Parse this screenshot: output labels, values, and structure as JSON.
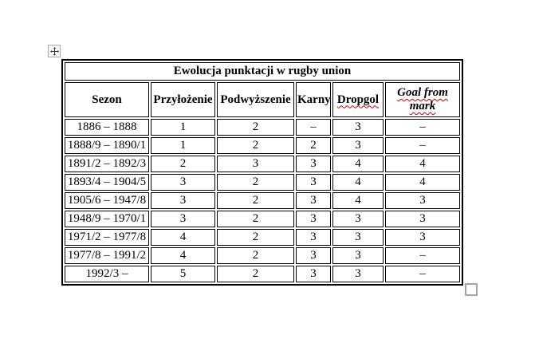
{
  "table": {
    "title": "Ewolucja punktacji w rugby union",
    "columns": [
      {
        "key": "sezon",
        "label": "Sezon",
        "misspelled": false,
        "italic": false
      },
      {
        "key": "przylozenie",
        "label": "Przyłożenie",
        "misspelled": false,
        "italic": false
      },
      {
        "key": "podwyzszenie",
        "label": "Podwyższenie",
        "misspelled": false,
        "italic": false
      },
      {
        "key": "karny",
        "label": "Karny",
        "misspelled": false,
        "italic": false
      },
      {
        "key": "dropgol",
        "label": "Dropgol",
        "misspelled": true,
        "italic": false
      },
      {
        "key": "goal-from-mark",
        "label": "Goal from mark",
        "misspelled": true,
        "italic": true
      }
    ],
    "rows": [
      {
        "sezon": "1886 – 1888",
        "values": [
          "1",
          "2",
          "–",
          "3",
          "–"
        ]
      },
      {
        "sezon": "1888/9 – 1890/1",
        "values": [
          "1",
          "2",
          "2",
          "3",
          "–"
        ]
      },
      {
        "sezon": "1891/2 – 1892/3",
        "values": [
          "2",
          "3",
          "3",
          "4",
          "4"
        ]
      },
      {
        "sezon": "1893/4 – 1904/5",
        "values": [
          "3",
          "2",
          "3",
          "4",
          "4"
        ]
      },
      {
        "sezon": "1905/6 – 1947/8",
        "values": [
          "3",
          "2",
          "3",
          "4",
          "3"
        ]
      },
      {
        "sezon": "1948/9 – 1970/1",
        "values": [
          "3",
          "2",
          "3",
          "3",
          "3"
        ]
      },
      {
        "sezon": "1971/2 – 1977/8",
        "values": [
          "4",
          "2",
          "3",
          "3",
          "3"
        ]
      },
      {
        "sezon": "1977/8 – 1991/2",
        "values": [
          "4",
          "2",
          "3",
          "3",
          "–"
        ]
      },
      {
        "sezon": "1992/3 –",
        "values": [
          "5",
          "2",
          "3",
          "3",
          "–"
        ]
      }
    ],
    "spellcheck_underline_color": "#cc0000"
  }
}
